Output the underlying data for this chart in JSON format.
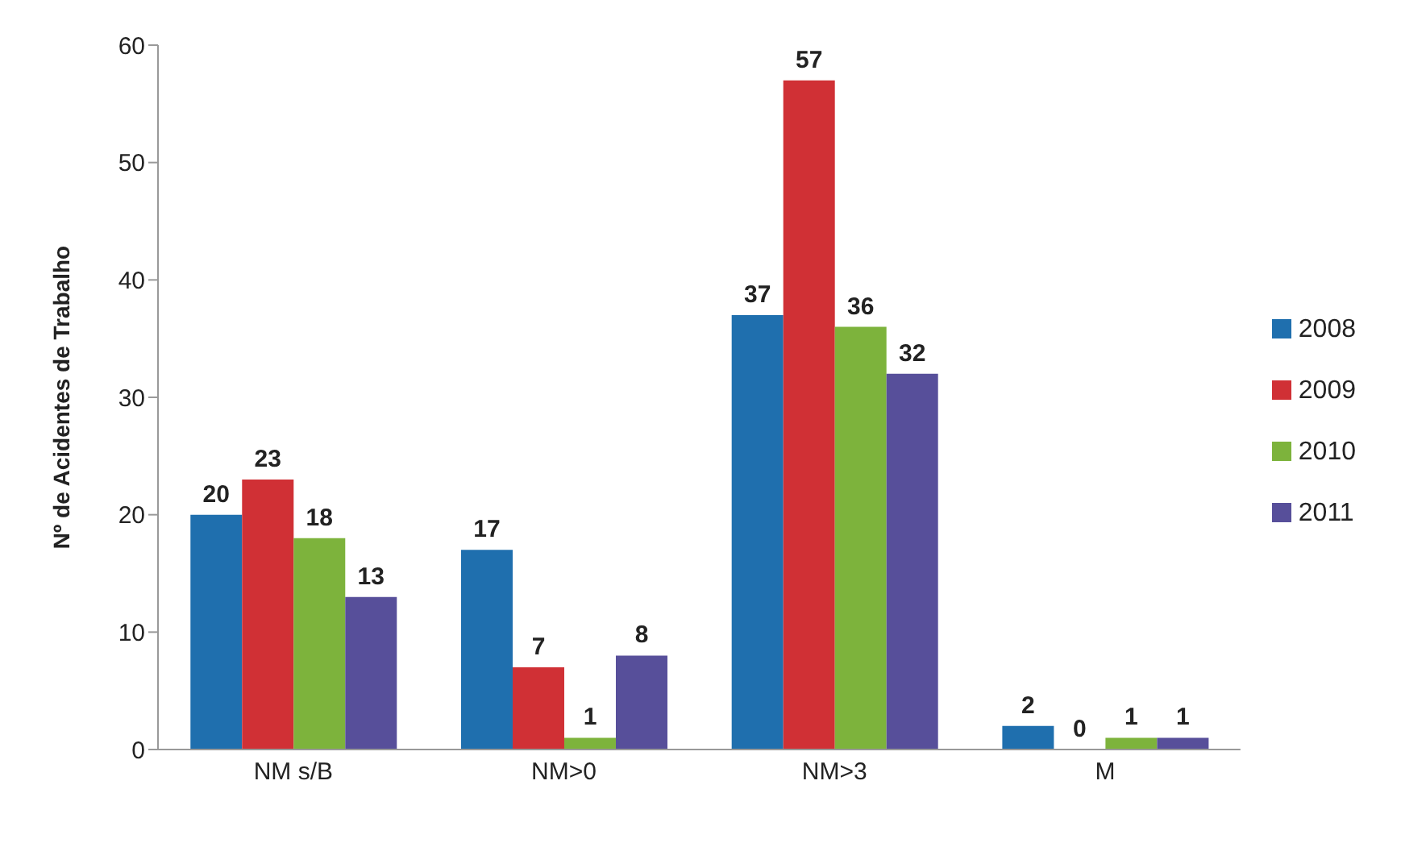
{
  "chart_data": {
    "type": "bar",
    "ylabel": "Nº de Acidentes de Trabalho",
    "categories": [
      "NM s/B",
      "NM>0",
      "NM>3",
      "M"
    ],
    "series": [
      {
        "name": "2008",
        "color": "#1f6fae",
        "values": [
          20,
          17,
          37,
          2
        ]
      },
      {
        "name": "2009",
        "color": "#d03035",
        "values": [
          23,
          7,
          57,
          0
        ]
      },
      {
        "name": "2010",
        "color": "#7db33c",
        "values": [
          18,
          1,
          36,
          1
        ]
      },
      {
        "name": "2011",
        "color": "#574f9a",
        "values": [
          13,
          8,
          32,
          1
        ]
      }
    ],
    "ylim": [
      0,
      60
    ],
    "yticks": [
      0,
      10,
      20,
      30,
      40,
      50,
      60
    ],
    "grid": false,
    "legend": "right",
    "data_labels": true
  }
}
